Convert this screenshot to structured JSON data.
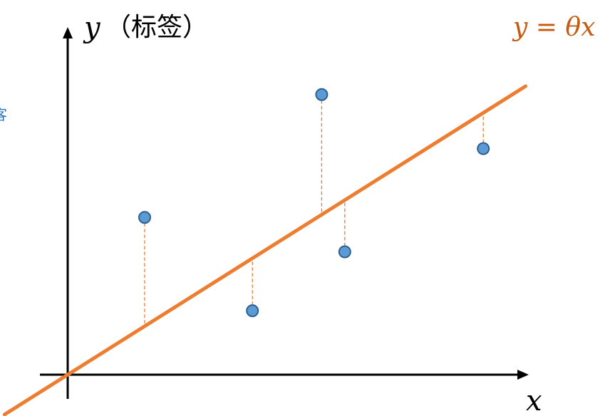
{
  "labels": {
    "y_axis_var": "y",
    "y_axis_text": "（标签）",
    "x_axis": "x",
    "equation": "y = θx",
    "edge_fragment": "客"
  },
  "colors": {
    "axis": "#000000",
    "fit_line": "#ED7D31",
    "residual": "#ED7D31",
    "point_fill": "#5B9BD5",
    "point_stroke": "#2E5F8F",
    "edge_text": "#2E75B6"
  },
  "points": [
    {
      "x": 1,
      "y": 3.2
    },
    {
      "x": 2.4,
      "y": 1.3
    },
    {
      "x": 3.3,
      "y": 5.7
    },
    {
      "x": 3.6,
      "y": 2.5
    },
    {
      "x": 5.4,
      "y": 4.6
    }
  ]
}
